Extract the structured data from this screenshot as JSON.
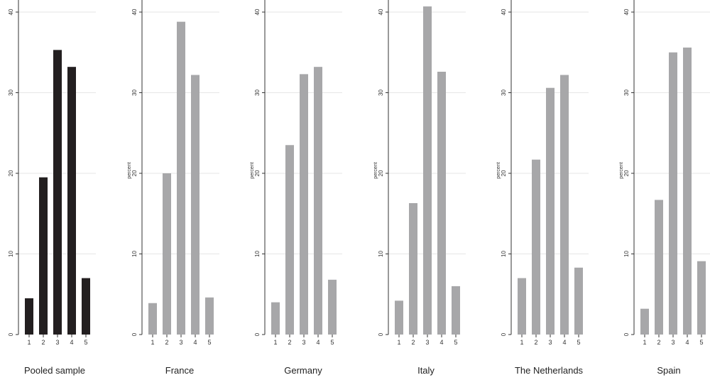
{
  "colors": {
    "pooled_bar": "#231f20",
    "country_bar": "#a7a7a9",
    "axis": "#333333",
    "grid": "#e6e6e6",
    "text": "#222222"
  },
  "chart_data": [
    {
      "type": "bar",
      "title": "Pooled sample",
      "ylabel": "",
      "ylim": [
        0,
        40
      ],
      "yticks": [
        "0",
        "10",
        "20",
        "30",
        "40"
      ],
      "categories": [
        "1",
        "2",
        "3",
        "4",
        "5"
      ],
      "values": [
        4.5,
        19.5,
        35.3,
        33.2,
        7.0
      ],
      "color": "#231f20",
      "grid": true
    },
    {
      "type": "bar",
      "title": "France",
      "ylabel": "percent",
      "ylim": [
        0,
        40
      ],
      "yticks": [
        "0",
        "10",
        "20",
        "30",
        "40"
      ],
      "categories": [
        "1",
        "2",
        "3",
        "4",
        "5"
      ],
      "values": [
        3.9,
        20.0,
        38.8,
        32.2,
        4.6
      ],
      "color": "#a7a7a9",
      "grid": true
    },
    {
      "type": "bar",
      "title": "Germany",
      "ylabel": "percent",
      "ylim": [
        0,
        40
      ],
      "yticks": [
        "0",
        "10",
        "20",
        "30",
        "40"
      ],
      "categories": [
        "1",
        "2",
        "3",
        "4",
        "5"
      ],
      "values": [
        4.0,
        23.5,
        32.3,
        33.2,
        6.8
      ],
      "color": "#a7a7a9",
      "grid": true
    },
    {
      "type": "bar",
      "title": "Italy",
      "ylabel": "percent",
      "ylim": [
        0,
        40
      ],
      "yticks": [
        "0",
        "10",
        "20",
        "30",
        "40"
      ],
      "categories": [
        "1",
        "2",
        "3",
        "4",
        "5"
      ],
      "values": [
        4.2,
        16.3,
        40.7,
        32.6,
        6.0
      ],
      "color": "#a7a7a9",
      "grid": true
    },
    {
      "type": "bar",
      "title": "The Netherlands",
      "ylabel": "percent",
      "ylim": [
        0,
        40
      ],
      "yticks": [
        "0",
        "10",
        "20",
        "30",
        "40"
      ],
      "categories": [
        "1",
        "2",
        "3",
        "4",
        "5"
      ],
      "values": [
        7.0,
        21.7,
        30.6,
        32.2,
        8.3
      ],
      "color": "#a7a7a9",
      "grid": true
    },
    {
      "type": "bar",
      "title": "Spain",
      "ylabel": "percent",
      "ylim": [
        0,
        40
      ],
      "yticks": [
        "0",
        "10",
        "20",
        "30",
        "40"
      ],
      "categories": [
        "1",
        "2",
        "3",
        "4",
        "5"
      ],
      "values": [
        3.2,
        16.7,
        35.0,
        35.6,
        9.1
      ],
      "color": "#a7a7a9",
      "grid": true
    }
  ]
}
